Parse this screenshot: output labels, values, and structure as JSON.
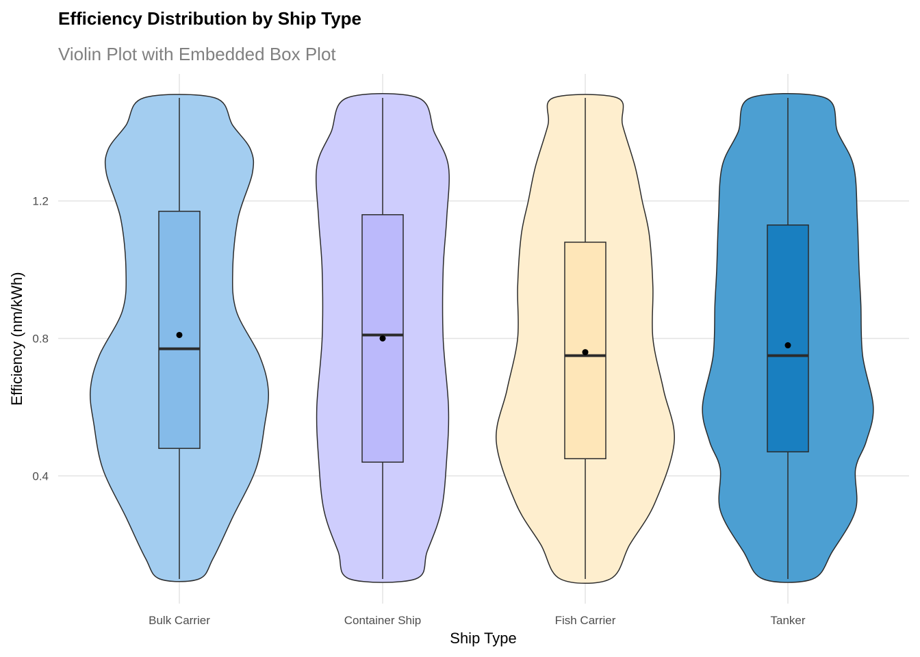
{
  "chart_data": {
    "type": "violin",
    "title": "Efficiency Distribution by Ship Type",
    "subtitle": "Violin Plot with Embedded Box Plot",
    "xlabel": "Ship Type",
    "ylabel": "Efficiency (nm/kWh)",
    "ylim": [
      0.1,
      1.5
    ],
    "yticks": [
      0.4,
      0.8,
      1.2
    ],
    "ytick_labels": [
      "0.4",
      "0.8",
      "1.2"
    ],
    "grid": true,
    "legend": "none",
    "categories": [
      "Bulk Carrier",
      "Container Ship",
      "Fish Carrier",
      "Tanker"
    ],
    "series": [
      {
        "category": "Bulk Carrier",
        "violin_color": "#a3cdf0",
        "box_color": "#85bbe9",
        "stats": {
          "min": 0.1,
          "q1": 0.48,
          "median": 0.77,
          "mean": 0.81,
          "q3": 1.17,
          "max": 1.5
        },
        "density": [
          [
            0.1,
            0.22
          ],
          [
            0.16,
            0.38
          ],
          [
            0.28,
            0.6
          ],
          [
            0.42,
            0.86
          ],
          [
            0.55,
            0.96
          ],
          [
            0.65,
            1.0
          ],
          [
            0.75,
            0.9
          ],
          [
            0.88,
            0.64
          ],
          [
            1.0,
            0.6
          ],
          [
            1.15,
            0.66
          ],
          [
            1.28,
            0.82
          ],
          [
            1.35,
            0.8
          ],
          [
            1.42,
            0.6
          ],
          [
            1.5,
            0.4
          ]
        ]
      },
      {
        "category": "Container Ship",
        "violin_color": "#cecdfd",
        "box_color": "#bbb9fb",
        "stats": {
          "min": 0.1,
          "q1": 0.44,
          "median": 0.81,
          "mean": 0.8,
          "q3": 1.16,
          "max": 1.5
        },
        "density": [
          [
            0.1,
            0.37
          ],
          [
            0.18,
            0.5
          ],
          [
            0.3,
            0.66
          ],
          [
            0.45,
            0.72
          ],
          [
            0.6,
            0.74
          ],
          [
            0.8,
            0.68
          ],
          [
            1.0,
            0.68
          ],
          [
            1.15,
            0.72
          ],
          [
            1.3,
            0.74
          ],
          [
            1.4,
            0.58
          ],
          [
            1.5,
            0.4
          ]
        ]
      },
      {
        "category": "Fish Carrier",
        "violin_color": "#feeece",
        "box_color": "#fee6b8",
        "stats": {
          "min": 0.1,
          "q1": 0.45,
          "median": 0.75,
          "mean": 0.76,
          "q3": 1.08,
          "max": 1.5
        },
        "density": [
          [
            0.1,
            0.28
          ],
          [
            0.2,
            0.5
          ],
          [
            0.32,
            0.78
          ],
          [
            0.5,
            1.0
          ],
          [
            0.65,
            0.88
          ],
          [
            0.8,
            0.76
          ],
          [
            0.95,
            0.76
          ],
          [
            1.1,
            0.72
          ],
          [
            1.2,
            0.64
          ],
          [
            1.3,
            0.56
          ],
          [
            1.42,
            0.42
          ],
          [
            1.5,
            0.36
          ]
        ]
      },
      {
        "category": "Tanker",
        "violin_color": "#4c9fd2",
        "box_color": "#197fc0",
        "stats": {
          "min": 0.1,
          "q1": 0.47,
          "median": 0.75,
          "mean": 0.78,
          "q3": 1.13,
          "max": 1.5
        },
        "density": [
          [
            0.1,
            0.28
          ],
          [
            0.18,
            0.5
          ],
          [
            0.3,
            0.76
          ],
          [
            0.42,
            0.76
          ],
          [
            0.5,
            0.88
          ],
          [
            0.6,
            0.96
          ],
          [
            0.75,
            0.84
          ],
          [
            0.9,
            0.82
          ],
          [
            1.0,
            0.8
          ],
          [
            1.15,
            0.78
          ],
          [
            1.3,
            0.74
          ],
          [
            1.4,
            0.56
          ],
          [
            1.5,
            0.42
          ]
        ]
      }
    ]
  }
}
